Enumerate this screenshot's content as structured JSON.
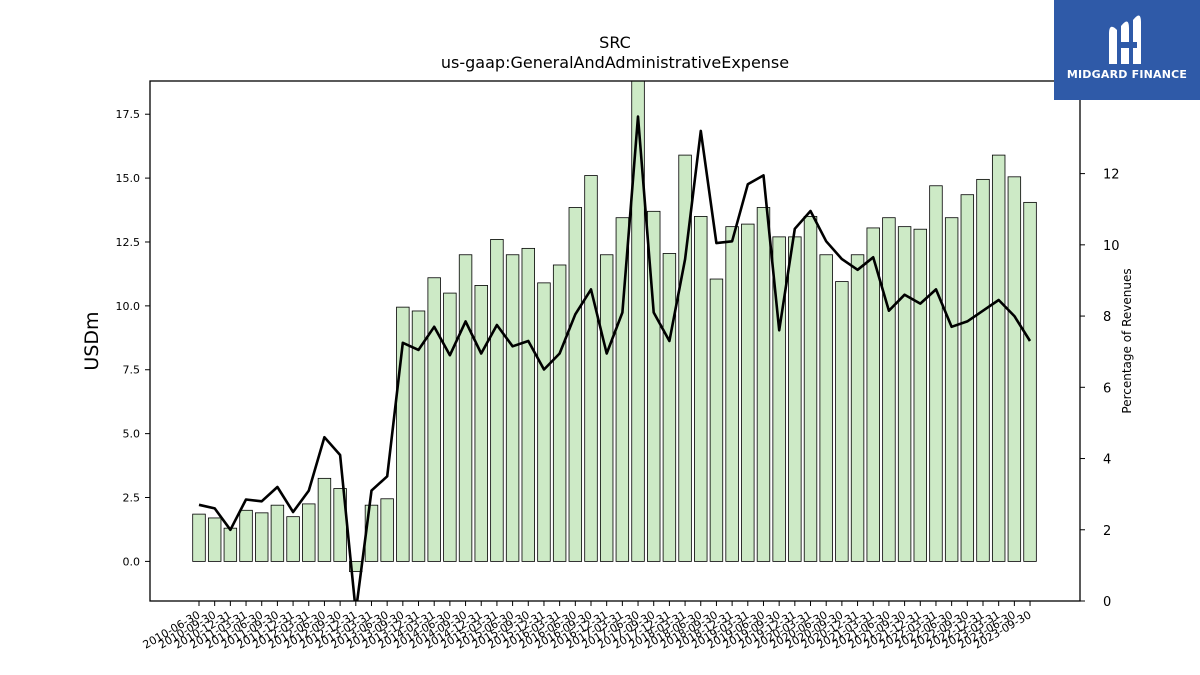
{
  "logo": {
    "brand": "MIDGARD FINANCE"
  },
  "chart_data": {
    "type": "bar",
    "title": "SRC",
    "subtitle": "us-gaap:GeneralAndAdministrativeExpense",
    "ylabel": "USDm",
    "y2label": "Percentage of Revenues",
    "ylim": [
      -1.55,
      18.8
    ],
    "y2lim": [
      0,
      14.6
    ],
    "yticks": [
      0.0,
      2.5,
      5.0,
      7.5,
      10.0,
      12.5,
      15.0,
      17.5
    ],
    "y2ticks": [
      0,
      2,
      4,
      6,
      8,
      10,
      12
    ],
    "categories": [
      "2010-06-30",
      "2010-09-30",
      "2010-12-31",
      "2011-03-31",
      "2011-06-30",
      "2011-09-30",
      "2011-12-31",
      "2012-03-31",
      "2012-06-30",
      "2012-09-30",
      "2012-12-31",
      "2013-03-31",
      "2013-06-30",
      "2013-09-30",
      "2013-12-31",
      "2014-03-31",
      "2014-06-30",
      "2014-09-30",
      "2014-12-31",
      "2015-03-31",
      "2015-06-30",
      "2015-09-30",
      "2015-12-31",
      "2016-03-31",
      "2016-06-30",
      "2016-09-30",
      "2016-12-31",
      "2017-03-31",
      "2017-06-30",
      "2017-09-30",
      "2017-12-31",
      "2018-03-31",
      "2018-06-30",
      "2018-09-30",
      "2018-12-31",
      "2019-03-31",
      "2019-06-30",
      "2019-09-30",
      "2019-12-31",
      "2020-03-31",
      "2020-06-30",
      "2020-09-30",
      "2020-12-31",
      "2021-03-31",
      "2021-06-30",
      "2021-09-30",
      "2021-12-31",
      "2022-03-31",
      "2022-06-30",
      "2022-09-30",
      "2022-12-31",
      "2023-03-31",
      "2023-06-30",
      "2023-09-30"
    ],
    "series": [
      {
        "kind": "bar",
        "axis": "left",
        "color": "#cdeac6",
        "values": [
          1.85,
          1.7,
          1.3,
          2.0,
          1.9,
          2.2,
          1.75,
          2.25,
          3.25,
          2.85,
          -0.4,
          2.2,
          2.45,
          9.95,
          9.8,
          11.1,
          10.5,
          12.0,
          10.8,
          12.6,
          12.0,
          12.25,
          10.9,
          11.6,
          13.85,
          15.1,
          12.0,
          13.45,
          19.0,
          13.7,
          12.05,
          15.9,
          13.5,
          11.05,
          13.1,
          13.2,
          13.85,
          12.7,
          12.7,
          13.5,
          12.0,
          10.95,
          12.0,
          13.05,
          13.45,
          13.1,
          13.0,
          14.7,
          13.45,
          14.35,
          14.95,
          15.9,
          15.05,
          14.05
        ]
      },
      {
        "kind": "line",
        "axis": "right",
        "color": "#000000",
        "values": [
          2.7,
          2.6,
          2.0,
          2.85,
          2.8,
          3.2,
          2.5,
          3.1,
          4.6,
          4.1,
          -0.3,
          3.1,
          3.5,
          7.25,
          7.05,
          7.7,
          6.9,
          7.85,
          6.95,
          7.75,
          7.15,
          7.3,
          6.5,
          6.95,
          8.05,
          8.75,
          6.95,
          8.1,
          13.6,
          8.1,
          7.3,
          9.6,
          13.2,
          10.05,
          10.1,
          11.7,
          11.95,
          7.6,
          10.45,
          10.95,
          10.1,
          9.6,
          9.3,
          9.65,
          8.15,
          8.6,
          8.35,
          8.75,
          7.7,
          7.85,
          8.15,
          8.45,
          8.0,
          7.3
        ]
      }
    ],
    "legend": "none",
    "grid": false
  }
}
